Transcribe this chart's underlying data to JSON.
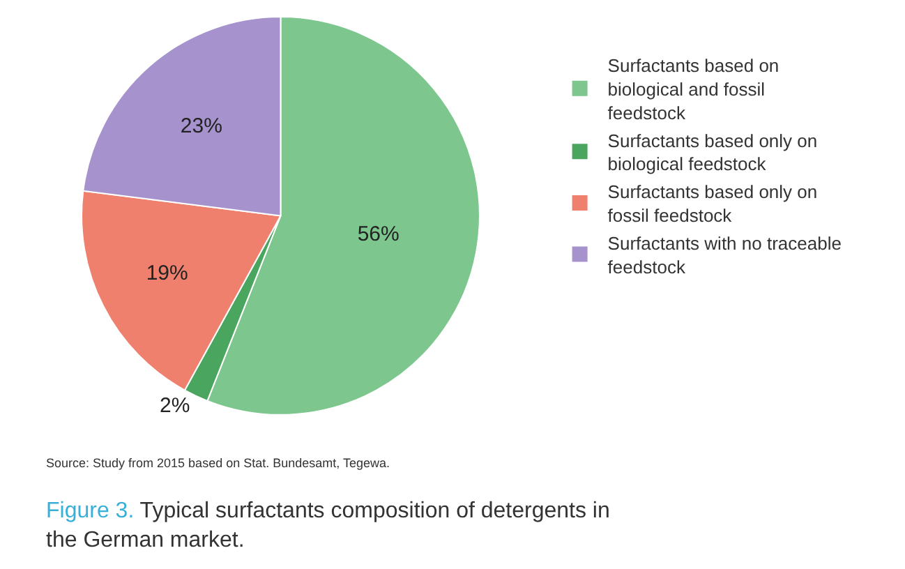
{
  "chart_data": {
    "type": "pie",
    "categories": [
      "Surfactants based on biological and fossil feedstock",
      "Surfactants based only on biological feedstock",
      "Surfactants based only on fossil feedstock",
      "Surfactants with no traceable feedstock"
    ],
    "values": [
      56,
      2,
      19,
      23
    ],
    "colors": [
      "#7dc78f",
      "#4aa65e",
      "#ef806e",
      "#a692cc"
    ],
    "value_labels": [
      "56%",
      "2%",
      "19%",
      "23%"
    ],
    "legend": "right",
    "annotations": [
      "Source: Study from 2015 based on Stat. Bundesamt, Tegewa.",
      "Figure 3.",
      "Typical surfactants composition of detergents in the German market."
    ]
  }
}
